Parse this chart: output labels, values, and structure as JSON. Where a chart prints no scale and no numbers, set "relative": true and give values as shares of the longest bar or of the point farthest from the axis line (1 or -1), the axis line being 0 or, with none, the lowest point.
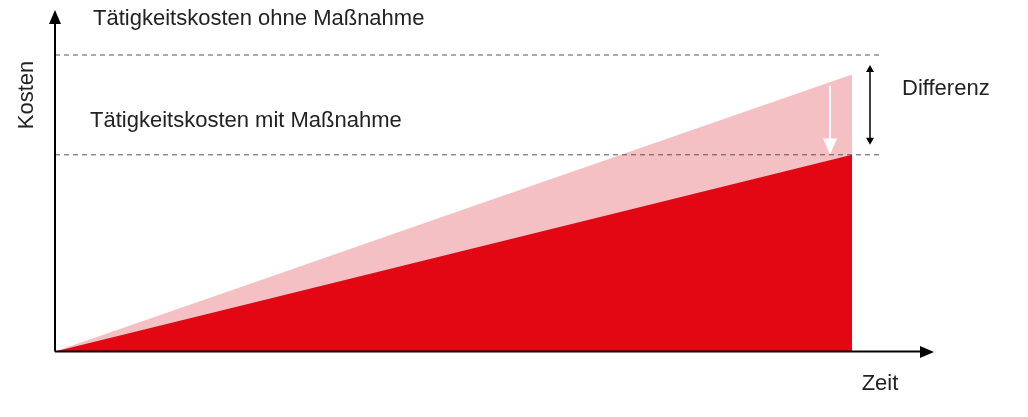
{
  "chart_data": {
    "type": "area",
    "relative": true,
    "xlabel": "Zeit",
    "ylabel": "Kosten",
    "categories": [
      null,
      null
    ],
    "series": [
      {
        "color": "#f5c0c4",
        "values": [
          0,
          1
        ]
      },
      {
        "color": "#e30613",
        "values": [
          0,
          0.71
        ]
      }
    ],
    "ref_lines": [
      {
        "axis": "y",
        "value": 1.07,
        "color": "#555555",
        "line_style": "dashed"
      },
      {
        "axis": "y",
        "value": 0.71,
        "color": "#555555",
        "line_style": "dashed"
      }
    ],
    "annotations": [
      "Tätigkeitskosten ohne Maßnahme",
      "Tätigkeitskosten mit Maßnahme",
      "Differenz"
    ],
    "grid": false,
    "legend": false
  }
}
